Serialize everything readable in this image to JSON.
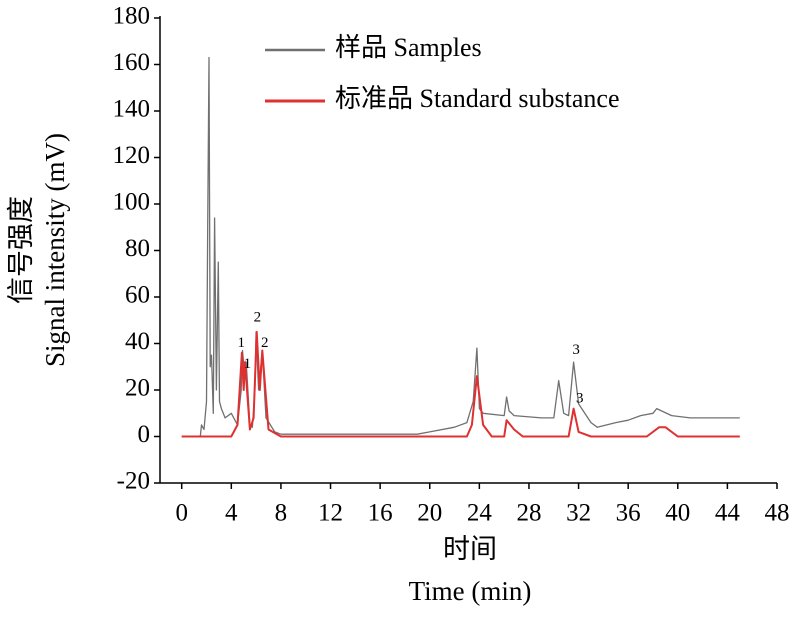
{
  "chart_data": {
    "type": "line",
    "xlabel": [
      "时间",
      "Time (min)"
    ],
    "ylabel": [
      "信号强度",
      "Signal intensity (mV)"
    ],
    "xlim": [
      -1.75,
      48
    ],
    "ylim": [
      -20,
      180
    ],
    "xticks": [
      0,
      4,
      8,
      12,
      16,
      20,
      24,
      28,
      32,
      36,
      40,
      44,
      48
    ],
    "yticks": [
      -20,
      0,
      20,
      40,
      60,
      80,
      100,
      120,
      140,
      160,
      180
    ],
    "legend": "upper-center",
    "series": [
      {
        "name": "样品 Samples",
        "color": "#707070",
        "x": [
          0,
          1.5,
          1.6,
          1.8,
          2.0,
          2.1,
          2.2,
          2.3,
          2.4,
          2.55,
          2.65,
          2.8,
          2.95,
          3.05,
          3.2,
          3.5,
          4.0,
          4.5,
          4.8,
          4.9,
          5.1,
          5.2,
          5.5,
          5.7,
          5.9,
          6.0,
          6.2,
          6.5,
          6.8,
          7.5,
          8,
          19,
          20,
          22,
          23,
          23.5,
          23.8,
          24.0,
          24.3,
          26.0,
          26.2,
          26.4,
          26.8,
          29,
          30.0,
          30.4,
          30.8,
          31.2,
          31.6,
          32.0,
          33.0,
          33.5,
          35,
          36,
          37,
          38,
          38.3,
          39.5,
          41,
          45
        ],
        "values": [
          0,
          0,
          5,
          3,
          15,
          90,
          163,
          30,
          35,
          10,
          94,
          20,
          75,
          15,
          12,
          8,
          10,
          5,
          20,
          37,
          25,
          32,
          5,
          4,
          20,
          45,
          20,
          37,
          8,
          2,
          1,
          1,
          2,
          4,
          6,
          15,
          38,
          12,
          10,
          9,
          17,
          11,
          9,
          8,
          8,
          24,
          10,
          9,
          32,
          14,
          6,
          4,
          6,
          7,
          9,
          10,
          12,
          9,
          8,
          8
        ]
      },
      {
        "name": "标准品 Standard substance",
        "color": "#e03030",
        "x": [
          0,
          4,
          4.5,
          4.85,
          5.0,
          5.1,
          5.5,
          5.8,
          6.05,
          6.3,
          6.5,
          7.0,
          8,
          23,
          23.4,
          23.8,
          24.3,
          25,
          26,
          26.2,
          26.8,
          27.5,
          31.2,
          31.6,
          32.0,
          33,
          37.5,
          38.5,
          39,
          40,
          45
        ],
        "values": [
          0,
          0,
          5,
          36,
          20,
          32,
          3,
          8,
          45,
          20,
          37,
          3,
          0,
          0,
          5,
          26,
          5,
          0,
          0,
          7,
          3,
          0,
          0,
          12,
          2,
          0,
          0,
          4,
          4,
          0,
          0
        ]
      }
    ],
    "annotations": [
      {
        "text": "1",
        "x": 4.8,
        "y": 40
      },
      {
        "text": "1",
        "x": 5.3,
        "y": 31
      },
      {
        "text": "2",
        "x": 6.1,
        "y": 51
      },
      {
        "text": "2",
        "x": 6.7,
        "y": 40
      },
      {
        "text": "3",
        "x": 31.8,
        "y": 37
      },
      {
        "text": "3",
        "x": 32.1,
        "y": 16
      }
    ]
  }
}
